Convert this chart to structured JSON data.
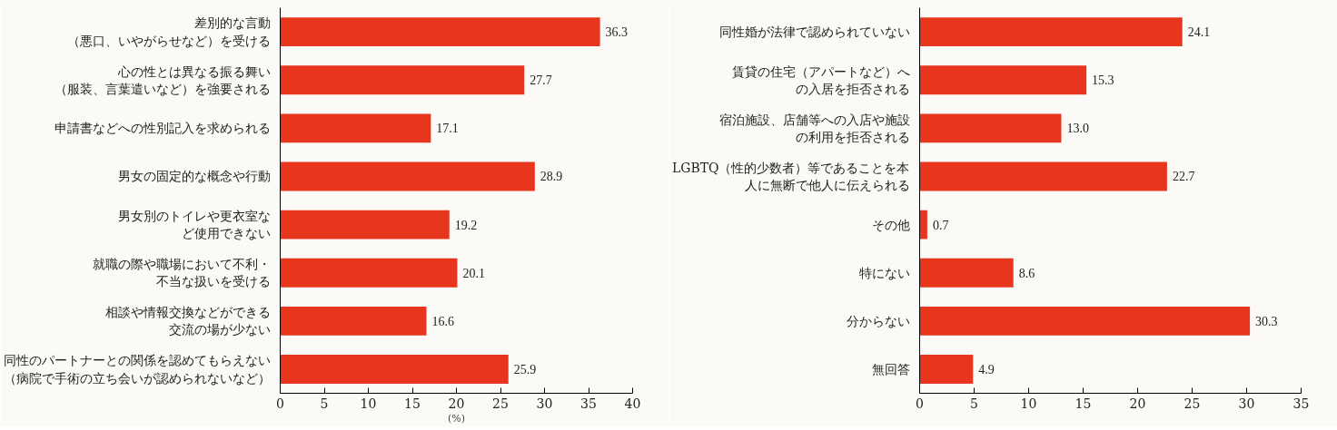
{
  "chart_data": [
    {
      "type": "bar",
      "orientation": "horizontal",
      "categories": [
        "差別的な言動（悪口、いやがらせなど）を受ける",
        "心の性とは異なる振る舞い（服装、言葉遣いなど）を強要される",
        "申請書などへの性別記入を求められる",
        "男女の固定的な概念や行動",
        "男女別のトイレや更衣室など使用できない",
        "就職の際や職場において不利・不当な扱いを受ける",
        "相談や情報交換などができる交流の場が少ない",
        "同性のパートナーとの関係を認めてもらえない（病院で手術の立ち会いが認められないなど）"
      ],
      "values": [
        36.3,
        27.7,
        17.1,
        28.9,
        19.2,
        20.1,
        16.6,
        25.9
      ],
      "value_labels": [
        "36.3",
        "27.7",
        "17.1",
        "28.9",
        "19.2",
        "20.1",
        "16.6",
        "25.9"
      ],
      "color": "#e8351e",
      "xlim": [
        0,
        40
      ],
      "xticks": [
        0,
        5,
        10,
        15,
        20,
        25,
        30,
        35,
        40
      ],
      "xlabel": "(%)",
      "grid": false
    },
    {
      "type": "bar",
      "orientation": "horizontal",
      "categories": [
        "同性婚が法律で認められていない",
        "賃貸の住宅（アパートなど）への入居を拒否される",
        "宿泊施設、店舗等への入店や施設の利用を拒否される",
        "LGBTQ（性的少数者）等であることを本人に無断で他人に伝えられる",
        "その他",
        "特にない",
        "分からない",
        "無回答"
      ],
      "values": [
        24.1,
        15.3,
        13.0,
        22.7,
        0.7,
        8.6,
        30.3,
        4.9
      ],
      "value_labels": [
        "24.1",
        "15.3",
        "13.0",
        "22.7",
        "0.7",
        "8.6",
        "30.3",
        "4.9"
      ],
      "color": "#e8351e",
      "xlim": [
        0,
        35
      ],
      "xticks": [
        0,
        5,
        10,
        15,
        20,
        25,
        30,
        35
      ],
      "grid": false
    }
  ]
}
